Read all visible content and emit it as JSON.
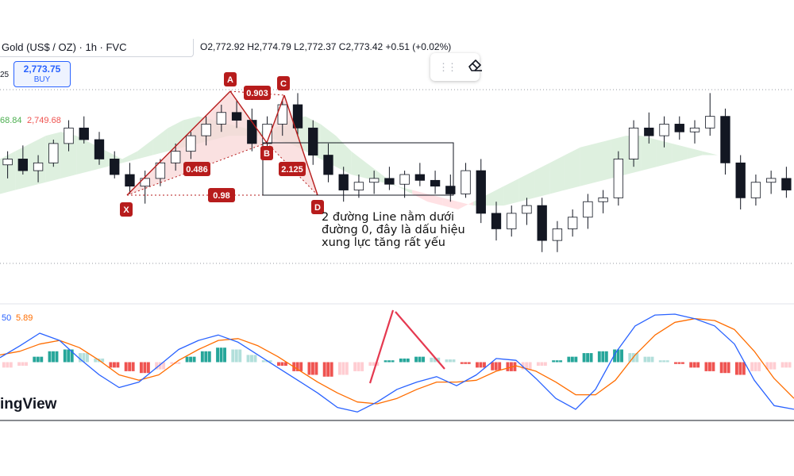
{
  "header": {
    "symbol": "Gold (US$ / OZ) · 1h · FVC",
    "ohlc": "O2,772.92 H2,774.79 L2,772.37 C2,773.42 +0.51 (+0.02%)"
  },
  "left_labels": {
    "vol_tick": "25",
    "ichimoku_values": [
      "68.84",
      "2,749.68"
    ]
  },
  "buy_button": {
    "price": "2,773.75",
    "label": "BUY"
  },
  "toolbar": {
    "grip_icon": "drag-handle-icon",
    "eraser_icon": "eraser-icon"
  },
  "pattern": {
    "points": [
      "X",
      "A",
      "B",
      "C",
      "D"
    ],
    "ratios": [
      "0.486",
      "0.903",
      "2.125",
      "0.98"
    ],
    "color": "#b71c1c"
  },
  "annotation": "2 đường Line nằm dưới đường 0, đây là dấu hiệu xung lực tăng rất yếu",
  "macd_labels": [
    "50",
    "5.89"
  ],
  "brand": "ingView",
  "colors": {
    "candle": "#131722",
    "cloud_bull": "#c8e6c9",
    "cloud_bear": "#ffcdd2",
    "macd_line": "#2962ff",
    "signal_line": "#ff6d00",
    "hist_up": "#26a69a",
    "hist_down": "#ef5350",
    "pattern_fill": "#f8d7d7"
  },
  "chart_data": {
    "type": "candlestick",
    "price_series": [
      {
        "o": 2745,
        "h": 2752,
        "l": 2738,
        "c": 2748
      },
      {
        "o": 2748,
        "h": 2755,
        "l": 2740,
        "c": 2742
      },
      {
        "o": 2742,
        "h": 2750,
        "l": 2736,
        "c": 2746
      },
      {
        "o": 2746,
        "h": 2758,
        "l": 2744,
        "c": 2756
      },
      {
        "o": 2756,
        "h": 2768,
        "l": 2752,
        "c": 2764
      },
      {
        "o": 2764,
        "h": 2770,
        "l": 2756,
        "c": 2758
      },
      {
        "o": 2758,
        "h": 2762,
        "l": 2745,
        "c": 2748
      },
      {
        "o": 2748,
        "h": 2752,
        "l": 2738,
        "c": 2740
      },
      {
        "o": 2740,
        "h": 2746,
        "l": 2730,
        "c": 2734
      },
      {
        "o": 2734,
        "h": 2742,
        "l": 2725,
        "c": 2738
      },
      {
        "o": 2738,
        "h": 2748,
        "l": 2734,
        "c": 2746
      },
      {
        "o": 2746,
        "h": 2756,
        "l": 2742,
        "c": 2752
      },
      {
        "o": 2752,
        "h": 2762,
        "l": 2748,
        "c": 2760
      },
      {
        "o": 2760,
        "h": 2770,
        "l": 2755,
        "c": 2766
      },
      {
        "o": 2766,
        "h": 2776,
        "l": 2762,
        "c": 2772
      },
      {
        "o": 2772,
        "h": 2778,
        "l": 2764,
        "c": 2768
      },
      {
        "o": 2768,
        "h": 2774,
        "l": 2752,
        "c": 2756
      },
      {
        "o": 2756,
        "h": 2770,
        "l": 2752,
        "c": 2766
      },
      {
        "o": 2766,
        "h": 2778,
        "l": 2760,
        "c": 2776
      },
      {
        "o": 2776,
        "h": 2782,
        "l": 2760,
        "c": 2764
      },
      {
        "o": 2764,
        "h": 2768,
        "l": 2745,
        "c": 2750
      },
      {
        "o": 2750,
        "h": 2756,
        "l": 2736,
        "c": 2740
      },
      {
        "o": 2740,
        "h": 2744,
        "l": 2726,
        "c": 2732
      },
      {
        "o": 2732,
        "h": 2740,
        "l": 2728,
        "c": 2736
      },
      {
        "o": 2736,
        "h": 2742,
        "l": 2730,
        "c": 2738
      },
      {
        "o": 2738,
        "h": 2744,
        "l": 2732,
        "c": 2735
      },
      {
        "o": 2735,
        "h": 2742,
        "l": 2728,
        "c": 2740
      },
      {
        "o": 2740,
        "h": 2746,
        "l": 2734,
        "c": 2737
      },
      {
        "o": 2737,
        "h": 2742,
        "l": 2730,
        "c": 2734
      },
      {
        "o": 2734,
        "h": 2740,
        "l": 2726,
        "c": 2730
      },
      {
        "o": 2730,
        "h": 2746,
        "l": 2728,
        "c": 2742
      },
      {
        "o": 2742,
        "h": 2748,
        "l": 2715,
        "c": 2720
      },
      {
        "o": 2720,
        "h": 2726,
        "l": 2706,
        "c": 2712
      },
      {
        "o": 2712,
        "h": 2724,
        "l": 2708,
        "c": 2720
      },
      {
        "o": 2720,
        "h": 2728,
        "l": 2714,
        "c": 2724
      },
      {
        "o": 2724,
        "h": 2728,
        "l": 2700,
        "c": 2706
      },
      {
        "o": 2706,
        "h": 2716,
        "l": 2700,
        "c": 2712
      },
      {
        "o": 2712,
        "h": 2722,
        "l": 2708,
        "c": 2718
      },
      {
        "o": 2718,
        "h": 2730,
        "l": 2712,
        "c": 2726
      },
      {
        "o": 2726,
        "h": 2732,
        "l": 2720,
        "c": 2728
      },
      {
        "o": 2728,
        "h": 2752,
        "l": 2724,
        "c": 2748
      },
      {
        "o": 2748,
        "h": 2768,
        "l": 2744,
        "c": 2764
      },
      {
        "o": 2764,
        "h": 2772,
        "l": 2756,
        "c": 2760
      },
      {
        "o": 2760,
        "h": 2770,
        "l": 2754,
        "c": 2766
      },
      {
        "o": 2766,
        "h": 2770,
        "l": 2758,
        "c": 2762
      },
      {
        "o": 2762,
        "h": 2768,
        "l": 2756,
        "c": 2764
      },
      {
        "o": 2764,
        "h": 2782,
        "l": 2760,
        "c": 2770
      },
      {
        "o": 2770,
        "h": 2774,
        "l": 2740,
        "c": 2746
      },
      {
        "o": 2746,
        "h": 2750,
        "l": 2722,
        "c": 2728
      },
      {
        "o": 2728,
        "h": 2740,
        "l": 2724,
        "c": 2736
      },
      {
        "o": 2736,
        "h": 2742,
        "l": 2730,
        "c": 2738
      },
      {
        "o": 2738,
        "h": 2744,
        "l": 2728,
        "c": 2732
      }
    ],
    "macd": {
      "ylim": [
        -60,
        60
      ],
      "macd_line": [
        5,
        18,
        32,
        24,
        4,
        -14,
        -28,
        -22,
        -4,
        14,
        24,
        30,
        22,
        8,
        -6,
        -20,
        -34,
        -50,
        -55,
        -44,
        -30,
        -22,
        -16,
        -26,
        -14,
        4,
        2,
        -18,
        -40,
        -52,
        -30,
        10,
        40,
        52,
        53,
        48,
        40,
        20,
        -20,
        -48,
        -52
      ],
      "signal_line": [
        8,
        12,
        20,
        24,
        16,
        2,
        -14,
        -20,
        -14,
        2,
        14,
        24,
        26,
        18,
        6,
        -8,
        -22,
        -34,
        -44,
        -46,
        -40,
        -30,
        -22,
        -22,
        -20,
        -10,
        -4,
        -10,
        -22,
        -36,
        -36,
        -20,
        8,
        30,
        44,
        48,
        46,
        36,
        12,
        -18,
        -40
      ],
      "histogram": [
        -6,
        -4,
        6,
        12,
        14,
        10,
        4,
        -6,
        -10,
        -12,
        -8,
        -2,
        6,
        12,
        16,
        14,
        8,
        2,
        -4,
        -10,
        -14,
        -16,
        -14,
        -10,
        -4,
        2,
        4,
        6,
        5,
        3,
        -2,
        -6,
        -9,
        -10,
        -8,
        -4,
        2,
        6,
        10,
        12,
        14,
        10,
        6,
        2,
        -2,
        -6,
        -10,
        -12,
        -14,
        -10,
        -8,
        -6
      ]
    },
    "title": "",
    "xlabel": "",
    "ylabel": ""
  }
}
